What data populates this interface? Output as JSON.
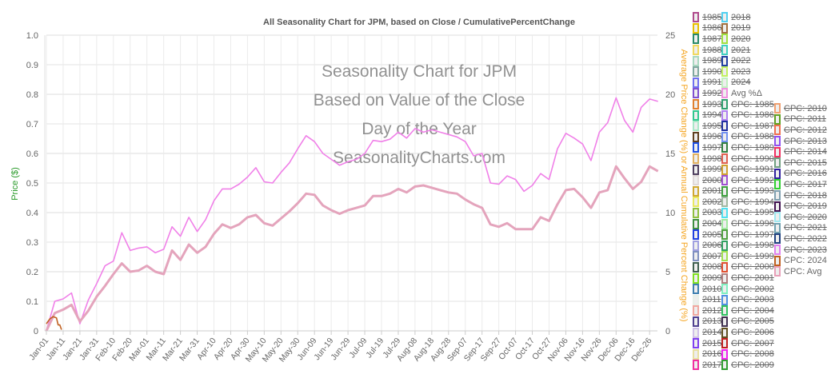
{
  "chart_data": {
    "type": "line",
    "title": "All Seasonality Chart for JPM, based on Close / CumulativePercentChange",
    "watermark": [
      "Seasonality Chart for JPM",
      "Based on Value of the Close",
      "Day of the Year",
      "SeasonalityCharts.com"
    ],
    "ylabel_left": "Price ($)",
    "ylabel_right": "Average Price Change (%) or Annual Cumulative Percent Change (%)",
    "ylim_left": [
      0,
      1.0
    ],
    "yticks_left": [
      "0",
      "0.1",
      "0.2",
      "0.3",
      "0.4",
      "0.5",
      "0.6",
      "0.7",
      "0.8",
      "0.9",
      "1.0"
    ],
    "ylim_right": [
      0,
      25
    ],
    "yticks_right": [
      "0",
      "5",
      "10",
      "15",
      "20",
      "25"
    ],
    "x_ticks": [
      "Jan-01",
      "Jan-11",
      "Jan-21",
      "Jan-31",
      "Feb-10",
      "Feb-20",
      "Mar-01",
      "Mar-11",
      "Mar-21",
      "Mar-31",
      "Apr-10",
      "Apr-20",
      "Apr-30",
      "May-10",
      "May-20",
      "May-30",
      "Jun-09",
      "Jun-19",
      "Jun-29",
      "Jul-09",
      "Jul-19",
      "Jul-29",
      "Aug-08",
      "Aug-18",
      "Aug-28",
      "Sep-07",
      "Sep-17",
      "Sep-27",
      "Oct-07",
      "Oct-17",
      "Oct-27",
      "Nov-06",
      "Nov-16",
      "Nov-26",
      "Dec-06",
      "Dec-16",
      "Dec-26"
    ],
    "grid": true,
    "legend_placement": "right",
    "x": [
      "Jan-01",
      "Jan-06",
      "Jan-11",
      "Jan-16",
      "Jan-21",
      "Jan-26",
      "Jan-31",
      "Feb-05",
      "Feb-10",
      "Feb-15",
      "Feb-20",
      "Feb-25",
      "Mar-01",
      "Mar-06",
      "Mar-11",
      "Mar-16",
      "Mar-21",
      "Mar-26",
      "Mar-31",
      "Apr-05",
      "Apr-10",
      "Apr-15",
      "Apr-20",
      "Apr-25",
      "Apr-30",
      "May-05",
      "May-10",
      "May-15",
      "May-20",
      "May-25",
      "May-30",
      "Jun-04",
      "Jun-09",
      "Jun-14",
      "Jun-19",
      "Jun-24",
      "Jun-29",
      "Jul-04",
      "Jul-09",
      "Jul-14",
      "Jul-19",
      "Jul-24",
      "Jul-29",
      "Aug-03",
      "Aug-08",
      "Aug-13",
      "Aug-18",
      "Aug-23",
      "Aug-28",
      "Sep-02",
      "Sep-07",
      "Sep-12",
      "Sep-17",
      "Sep-22",
      "Sep-27",
      "Oct-02",
      "Oct-07",
      "Oct-12",
      "Oct-17",
      "Oct-22",
      "Oct-27",
      "Nov-01",
      "Nov-06",
      "Nov-11",
      "Nov-16",
      "Nov-21",
      "Nov-26",
      "Dec-01",
      "Dec-06",
      "Dec-11",
      "Dec-16",
      "Dec-21",
      "Dec-26",
      "Dec-31"
    ],
    "series": [
      {
        "name": "Avg %Δ",
        "axis": "right",
        "color": "#f080e8",
        "values": [
          0.0,
          2.5,
          2.7,
          3.2,
          0.6,
          2.6,
          4.0,
          5.5,
          5.9,
          8.3,
          6.8,
          7.0,
          7.1,
          6.6,
          6.9,
          8.8,
          8.0,
          9.6,
          8.4,
          9.4,
          11.0,
          12.0,
          12.0,
          12.4,
          13.0,
          13.8,
          12.6,
          12.5,
          13.4,
          14.2,
          15.4,
          16.5,
          16.0,
          15.0,
          14.5,
          14.0,
          14.3,
          14.5,
          15.0,
          16.1,
          16.0,
          16.2,
          16.8,
          16.3,
          17.1,
          16.8,
          17.0,
          16.8,
          16.6,
          16.4,
          16.0,
          14.8,
          15.0,
          12.5,
          12.4,
          13.1,
          12.8,
          11.8,
          12.3,
          13.3,
          12.8,
          15.4,
          16.7,
          16.3,
          15.8,
          14.4,
          16.8,
          17.6,
          19.7,
          17.8,
          16.8,
          18.9,
          19.6,
          19.4
        ]
      },
      {
        "name": "CPC: Avg",
        "axis": "right",
        "color": "#e4a4bc",
        "values": [
          0.0,
          1.5,
          1.8,
          2.2,
          0.8,
          1.7,
          2.9,
          3.8,
          4.8,
          5.7,
          5.0,
          5.1,
          5.5,
          5.0,
          4.8,
          6.8,
          6.0,
          7.3,
          6.6,
          7.1,
          8.2,
          9.0,
          8.7,
          9.0,
          9.6,
          9.8,
          9.1,
          8.9,
          9.5,
          10.1,
          10.8,
          11.6,
          11.5,
          10.6,
          10.2,
          9.9,
          10.2,
          10.4,
          10.6,
          11.4,
          11.4,
          11.6,
          12.0,
          11.7,
          12.2,
          12.3,
          12.1,
          11.9,
          11.7,
          11.6,
          11.1,
          10.7,
          10.4,
          9.0,
          8.8,
          9.1,
          8.6,
          8.6,
          8.6,
          9.6,
          9.3,
          10.7,
          11.9,
          12.0,
          11.3,
          10.4,
          11.7,
          11.9,
          13.9,
          12.9,
          12.0,
          12.6,
          13.9,
          13.5
        ]
      },
      {
        "name": "CPC: 2024",
        "axis": "right",
        "color": "#c06020",
        "x": [
          "Jan-01",
          "Jan-03",
          "Jan-05",
          "Jan-07",
          "Jan-08",
          "Jan-09",
          "Jan-10"
        ],
        "values": [
          0.6,
          1.0,
          1.2,
          1.1,
          0.5,
          0.5,
          0.1
        ]
      }
    ]
  },
  "legend": {
    "columns": [
      [
        {
          "label": "1985",
          "color": "#b04a8c",
          "on": false
        },
        {
          "label": "1986",
          "color": "#e8c000",
          "on": false
        },
        {
          "label": "1987",
          "color": "#2a8a6a",
          "on": false
        },
        {
          "label": "1988",
          "color": "#f0d860",
          "on": false
        },
        {
          "label": "1989",
          "color": "#a8d8c0",
          "on": false
        },
        {
          "label": "1990",
          "color": "#80a8a0",
          "on": false
        },
        {
          "label": "1991",
          "color": "#7070f0",
          "on": false
        },
        {
          "label": "1992",
          "color": "#8050d0",
          "on": false
        },
        {
          "label": "1993",
          "color": "#e08030",
          "on": false
        },
        {
          "label": "1994",
          "color": "#30c890",
          "on": false
        },
        {
          "label": "1995",
          "color": "#a8e8c8",
          "on": false
        },
        {
          "label": "1996",
          "color": "#604020",
          "on": false
        },
        {
          "label": "1997",
          "color": "#2050e0",
          "on": false
        },
        {
          "label": "1998",
          "color": "#e0b060",
          "on": false
        },
        {
          "label": "1999",
          "color": "#504060",
          "on": false
        },
        {
          "label": "2000",
          "color": "#e0d8d8",
          "on": false
        },
        {
          "label": "2001",
          "color": "#d0a830",
          "on": false
        },
        {
          "label": "2002",
          "color": "#e8e860",
          "on": false
        },
        {
          "label": "2003",
          "color": "#90c040",
          "on": false
        },
        {
          "label": "2004",
          "color": "#409040",
          "on": false
        },
        {
          "label": "2005",
          "color": "#2040e0",
          "on": false
        },
        {
          "label": "2006",
          "color": "#a0a0e0",
          "on": false
        },
        {
          "label": "2007",
          "color": "#8090c0",
          "on": false
        },
        {
          "label": "2008",
          "color": "#406050",
          "on": false
        },
        {
          "label": "2009",
          "color": "#80e020",
          "on": false
        },
        {
          "label": "2010",
          "color": "#4080b0",
          "on": false
        },
        {
          "label": "2011",
          "color": "#e8f0e8",
          "on": false
        },
        {
          "label": "2012",
          "color": "#f0a8a0",
          "on": false
        },
        {
          "label": "2013",
          "color": "#504090",
          "on": false
        },
        {
          "label": "2014",
          "color": "#d0c0e8",
          "on": false
        },
        {
          "label": "2015",
          "color": "#8040f0",
          "on": false
        },
        {
          "label": "2016",
          "color": "#e8e0a0",
          "on": false
        },
        {
          "label": "2017",
          "color": "#f030a0",
          "on": false
        }
      ],
      [
        {
          "label": "2018",
          "color": "#50d0f0",
          "on": false
        },
        {
          "label": "2019",
          "color": "#a07040",
          "on": false
        },
        {
          "label": "2020",
          "color": "#a0e040",
          "on": false
        },
        {
          "label": "2021",
          "color": "#40d0c0",
          "on": false
        },
        {
          "label": "2022",
          "color": "#2040a0",
          "on": false
        },
        {
          "label": "2023",
          "color": "#c0f060",
          "on": false
        },
        {
          "label": "2024",
          "color": "#c0f0c0",
          "on": false
        },
        {
          "label": "Avg %Δ",
          "color": "#f090e0",
          "on": true
        },
        {
          "label": "CPC: 1985",
          "color": "#30a070",
          "on": false
        },
        {
          "label": "CPC: 1986",
          "color": "#b080f0",
          "on": false
        },
        {
          "label": "CPC: 1987",
          "color": "#2030a0",
          "on": false
        },
        {
          "label": "CPC: 1988",
          "color": "#7090f0",
          "on": false
        },
        {
          "label": "CPC: 1989",
          "color": "#308040",
          "on": false
        },
        {
          "label": "CPC: 1990",
          "color": "#e06050",
          "on": false
        },
        {
          "label": "CPC: 1991",
          "color": "#d0a030",
          "on": false
        },
        {
          "label": "CPC: 1992",
          "color": "#a050d0",
          "on": false
        },
        {
          "label": "CPC: 1993",
          "color": "#40a040",
          "on": false
        },
        {
          "label": "CPC: 1994",
          "color": "#a0b8a0",
          "on": false
        },
        {
          "label": "CPC: 1995",
          "color": "#50e0f0",
          "on": false
        },
        {
          "label": "CPC: 1996",
          "color": "#a0e8a0",
          "on": false
        },
        {
          "label": "CPC: 1997",
          "color": "#50a040",
          "on": false
        },
        {
          "label": "CPC: 1998",
          "color": "#30a060",
          "on": false
        },
        {
          "label": "CPC: 1999",
          "color": "#a0e050",
          "on": false
        },
        {
          "label": "CPC: 2000",
          "color": "#e05030",
          "on": false
        },
        {
          "label": "CPC: 2001",
          "color": "#b08080",
          "on": false
        },
        {
          "label": "CPC: 2002",
          "color": "#80f0c0",
          "on": false
        },
        {
          "label": "CPC: 2003",
          "color": "#5090e0",
          "on": false
        },
        {
          "label": "CPC: 2004",
          "color": "#30c060",
          "on": false
        },
        {
          "label": "CPC: 2005",
          "color": "#403050",
          "on": false
        },
        {
          "label": "CPC: 2006",
          "color": "#605020",
          "on": false
        },
        {
          "label": "CPC: 2007",
          "color": "#c02020",
          "on": false
        },
        {
          "label": "CPC: 2008",
          "color": "#f020f0",
          "on": false
        },
        {
          "label": "CPC: 2009",
          "color": "#30a030",
          "on": false
        }
      ],
      [
        {
          "label": "CPC: 2010",
          "color": "#f0a070",
          "on": false
        },
        {
          "label": "CPC: 2011",
          "color": "#60a020",
          "on": false
        },
        {
          "label": "CPC: 2012",
          "color": "#f07050",
          "on": false
        },
        {
          "label": "CPC: 2013",
          "color": "#9050f0",
          "on": false
        },
        {
          "label": "CPC: 2014",
          "color": "#f03060",
          "on": false
        },
        {
          "label": "CPC: 2015",
          "color": "#70a080",
          "on": false
        },
        {
          "label": "CPC: 2016",
          "color": "#3020a0",
          "on": false
        },
        {
          "label": "CPC: 2017",
          "color": "#30d030",
          "on": false
        },
        {
          "label": "CPC: 2018",
          "color": "#80a0b0",
          "on": false
        },
        {
          "label": "CPC: 2019",
          "color": "#401050",
          "on": false
        },
        {
          "label": "CPC: 2020",
          "color": "#a0e8f0",
          "on": false
        },
        {
          "label": "CPC: 2021",
          "color": "#70a0b0",
          "on": false
        },
        {
          "label": "CPC: 2022",
          "color": "#204080",
          "on": false
        },
        {
          "label": "CPC: 2023",
          "color": "#e080f0",
          "on": false
        },
        {
          "label": "CPC: 2024",
          "color": "#c06020",
          "on": true
        },
        {
          "label": "CPC: Avg",
          "color": "#e8a0b8",
          "on": true
        }
      ]
    ]
  },
  "colors": {
    "left_axis_title": "#2a9a2a",
    "right_axis_title": "#f5a623",
    "grid": "#e6e6e6",
    "text": "#666666"
  }
}
